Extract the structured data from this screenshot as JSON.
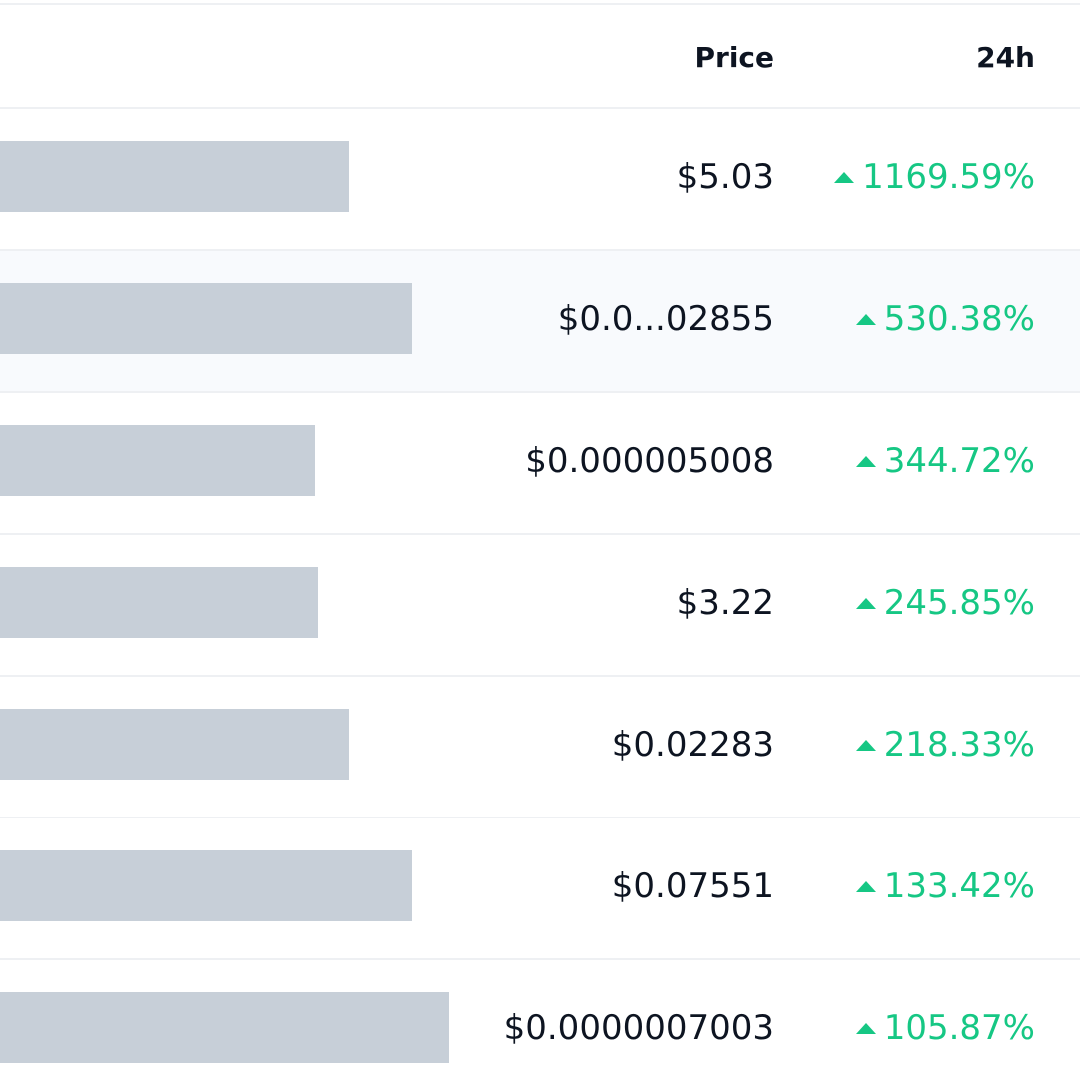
{
  "header": {
    "price_label": "Price",
    "change_label": "24h"
  },
  "colors": {
    "positive": "#16c784",
    "text": "#0d1421",
    "redaction": "#c7cfd8",
    "row_highlight": "#f8fafd"
  },
  "rows": [
    {
      "price": "$5.03",
      "change": "1169.59%",
      "direction": "up-icon"
    },
    {
      "price": "$0.0...02855",
      "change": "530.38%",
      "direction": "up-icon"
    },
    {
      "price": "$0.000005008",
      "change": "344.72%",
      "direction": "up-icon"
    },
    {
      "price": "$3.22",
      "change": "245.85%",
      "direction": "up-icon"
    },
    {
      "price": "$0.02283",
      "change": "218.33%",
      "direction": "up-icon"
    },
    {
      "price": "$0.07551",
      "change": "133.42%",
      "direction": "up-icon"
    },
    {
      "price": "$0.0000007003",
      "change": "105.87%",
      "direction": "up-icon"
    }
  ]
}
